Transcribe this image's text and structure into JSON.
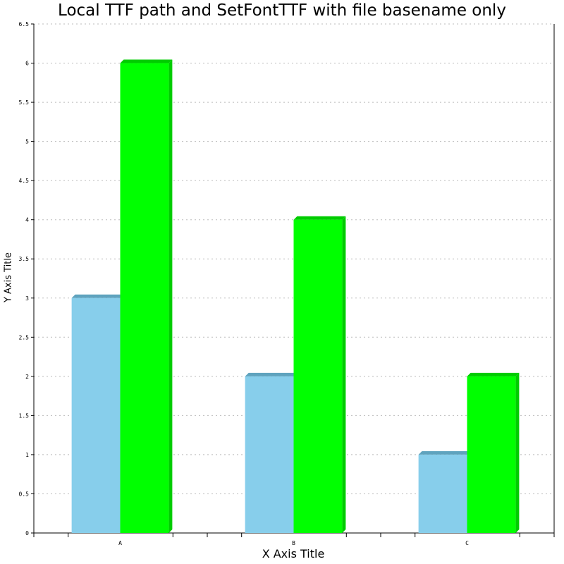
{
  "chart_data": {
    "type": "bar",
    "title": "Local TTF path and SetFontTTF with file basename only",
    "xlabel": "X Axis Title",
    "ylabel": "Y Axis Title",
    "categories": [
      "A",
      "B",
      "C"
    ],
    "series": [
      {
        "values": [
          3,
          2,
          1
        ],
        "color": "#87ceeb",
        "top_color": "#5fa3be"
      },
      {
        "values": [
          6,
          4,
          2
        ],
        "color": "#00ff00",
        "top_color": "#00cc00"
      }
    ],
    "ylim": [
      0,
      6.5
    ],
    "yticks": [
      "0",
      "0.5",
      "1",
      "1.5",
      "2",
      "2.5",
      "3",
      "3.5",
      "4",
      "4.5",
      "5",
      "5.5",
      "6",
      "6.5"
    ],
    "grid": true,
    "grid_color": "#bbbbbb",
    "legend": "none"
  }
}
